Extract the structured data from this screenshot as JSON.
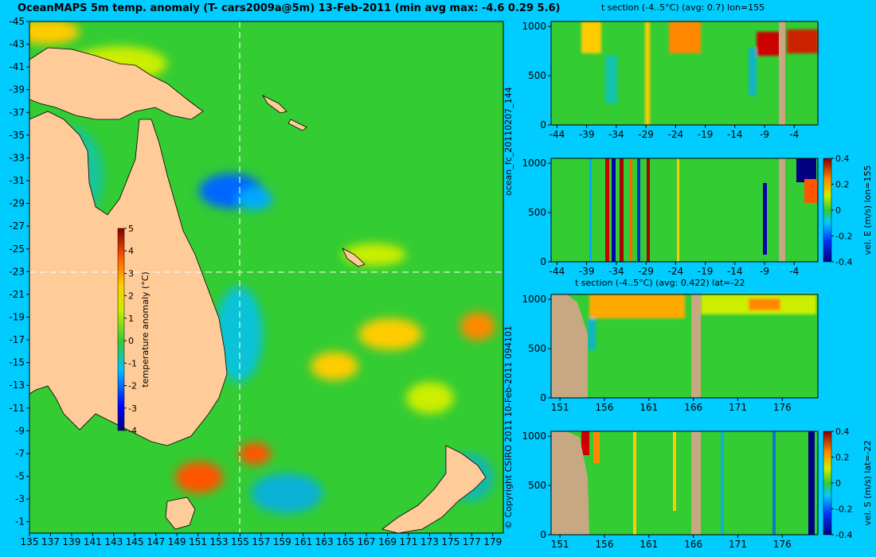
{
  "title": "OceanMAPS 5m temp. anomaly (T- cars2009a@5m) 13-Feb-2011 (min avg max: -4.6 0.29 5.6)",
  "side_labels": {
    "run_id": "ocean_fc_20110207_144",
    "copyright": "© Copyright CSIRO 2011 10-Feb-2011 094101"
  },
  "colors": {
    "background": "#00ccff",
    "land": "#ffcc99",
    "section_land": "#c8a882",
    "ocean_base": "#33cc33"
  },
  "chart_data": [
    {
      "type": "heatmap",
      "name": "map",
      "x_ticks": [
        135,
        137,
        139,
        141,
        143,
        145,
        147,
        149,
        151,
        153,
        155,
        157,
        159,
        161,
        163,
        165,
        167,
        169,
        171,
        173,
        175,
        177,
        179
      ],
      "y_ticks": [
        -1,
        -3,
        -5,
        -7,
        -9,
        -11,
        -13,
        -15,
        -17,
        -19,
        -21,
        -23,
        -25,
        -27,
        -29,
        -31,
        -33,
        -35,
        -37,
        -39,
        -41,
        -43,
        -45
      ],
      "xlim": [
        135,
        180
      ],
      "ylim": [
        -45,
        0
      ],
      "crosshair": {
        "lon": 155,
        "lat": -22
      },
      "colorbar": {
        "label": "temperature anomaly (°C)",
        "ticks": [
          5,
          4,
          3,
          2,
          1,
          0,
          -1,
          -2,
          -3,
          -4
        ],
        "range": [
          -4,
          5
        ]
      }
    },
    {
      "type": "heatmap",
      "name": "section-1",
      "title": "t section (-4..5°C) (avg: 0.7) lon=155",
      "x_ticks": [
        -44,
        -39,
        -34,
        -29,
        -24,
        -19,
        -14,
        -9,
        -4
      ],
      "y_ticks": [
        0,
        500,
        1000
      ],
      "xlim": [
        -45,
        0
      ],
      "ylim": [
        1050,
        0
      ]
    },
    {
      "type": "heatmap",
      "name": "section-2",
      "x_ticks": [
        -44,
        -39,
        -34,
        -29,
        -24,
        -19,
        -14,
        -9,
        -4
      ],
      "y_ticks": [
        0,
        500,
        1000
      ],
      "xlim": [
        -45,
        0
      ],
      "ylim": [
        1050,
        0
      ],
      "colorbar": {
        "label": "vel. E (m/s) lon=155",
        "ticks": [
          0.4,
          0.2,
          0,
          -0.2,
          -0.4
        ],
        "range": [
          -0.4,
          0.4
        ]
      }
    },
    {
      "type": "heatmap",
      "name": "section-3",
      "title": "t section (-4..5°C) (avg: 0.422) lat=-22",
      "x_ticks": [
        151,
        156,
        161,
        166,
        171,
        176
      ],
      "y_ticks": [
        0,
        500,
        1000
      ],
      "xlim": [
        150,
        180
      ],
      "ylim": [
        1050,
        0
      ]
    },
    {
      "type": "heatmap",
      "name": "section-4",
      "x_ticks": [
        151,
        156,
        161,
        166,
        171,
        176
      ],
      "y_ticks": [
        0,
        500,
        1000
      ],
      "xlim": [
        150,
        180
      ],
      "ylim": [
        1050,
        0
      ],
      "colorbar": {
        "label": "vel. S (m/s) lat=-22",
        "ticks": [
          0.4,
          0.2,
          0,
          -0.2,
          -0.4
        ],
        "range": [
          -0.4,
          0.4
        ]
      }
    }
  ]
}
